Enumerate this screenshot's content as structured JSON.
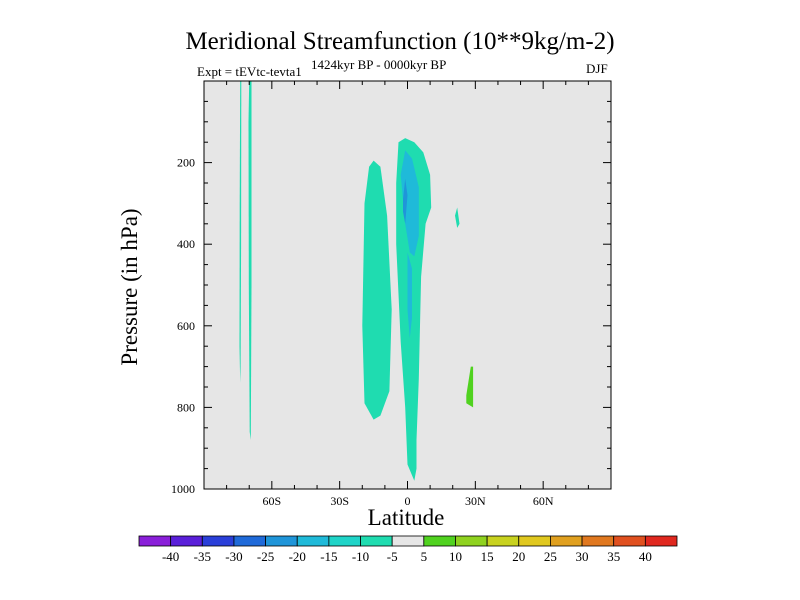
{
  "chart_data": {
    "type": "contour",
    "title": "Meridional Streamfunction (10**9kg/m-2)",
    "left_annotation": "Expt = tEVtc-tevta1",
    "center_annotation": "1424kyr BP - 0000kyr BP",
    "right_annotation": "DJF",
    "xlabel": "Latitude",
    "ylabel": "Pressure (in hPa)",
    "xlim": [
      -90,
      90
    ],
    "ylim": [
      1000,
      0
    ],
    "x_ticks": [
      {
        "value": -60,
        "label": "60S"
      },
      {
        "value": -30,
        "label": "30S"
      },
      {
        "value": 0,
        "label": "0"
      },
      {
        "value": 30,
        "label": "30N"
      },
      {
        "value": 60,
        "label": "60N"
      }
    ],
    "y_ticks": [
      {
        "value": 200,
        "label": "200"
      },
      {
        "value": 400,
        "label": "400"
      },
      {
        "value": 600,
        "label": "600"
      },
      {
        "value": 800,
        "label": "800"
      },
      {
        "value": 1000,
        "label": "1000"
      }
    ],
    "background_color": "#e6e6e6",
    "colorbar": {
      "levels": [
        "-40",
        "-35",
        "-30",
        "-25",
        "-20",
        "-15",
        "-10",
        "-5",
        "5",
        "10",
        "15",
        "20",
        "25",
        "30",
        "35",
        "40"
      ],
      "colors": [
        "#8a1fd9",
        "#5a1fd9",
        "#2a3fd9",
        "#1f6ad9",
        "#1f95d9",
        "#1fbad9",
        "#1fd4c8",
        "#1fdcb0",
        "#e6e6e6",
        "#50d21f",
        "#8fd21f",
        "#c8d21f",
        "#e0c81f",
        "#e0a01f",
        "#e0781f",
        "#e0501f",
        "#e0281f"
      ]
    },
    "regions": [
      {
        "name": "sh-polar-thin-column",
        "color": "#1fdcb0",
        "points": [
          [
            -74,
            0
          ],
          [
            -73.5,
            0
          ],
          [
            -73.6,
            400
          ],
          [
            -73.8,
            700
          ],
          [
            -74,
            740
          ],
          [
            -74.3,
            650
          ],
          [
            -74.2,
            300
          ]
        ]
      },
      {
        "name": "sh-polar-column",
        "color": "#1fdcb0",
        "points": [
          [
            -70,
            0
          ],
          [
            -69,
            0
          ],
          [
            -69,
            500
          ],
          [
            -69.3,
            880
          ],
          [
            -69.8,
            860
          ],
          [
            -70.2,
            500
          ],
          [
            -70.3,
            100
          ]
        ]
      },
      {
        "name": "tropical-west-cell",
        "color": "#1fdcb0",
        "points": [
          [
            -17,
            210
          ],
          [
            -15,
            195
          ],
          [
            -12,
            210
          ],
          [
            -9,
            330
          ],
          [
            -7,
            560
          ],
          [
            -8,
            760
          ],
          [
            -12,
            820
          ],
          [
            -15,
            830
          ],
          [
            -19,
            790
          ],
          [
            -20,
            600
          ],
          [
            -19,
            300
          ]
        ]
      },
      {
        "name": "tropical-main-cell",
        "color": "#1fdcb0",
        "points": [
          [
            -4,
            150
          ],
          [
            -1,
            140
          ],
          [
            3,
            150
          ],
          [
            7,
            175
          ],
          [
            10,
            230
          ],
          [
            10.5,
            310
          ],
          [
            8,
            350
          ],
          [
            6,
            480
          ],
          [
            5,
            730
          ],
          [
            4,
            880
          ],
          [
            4,
            950
          ],
          [
            3,
            980
          ],
          [
            0,
            940
          ],
          [
            -1,
            800
          ],
          [
            -3,
            640
          ],
          [
            -5,
            400
          ],
          [
            -5,
            250
          ]
        ]
      },
      {
        "name": "tropical-core-1",
        "color": "#1fbad9",
        "points": [
          [
            -3,
            230
          ],
          [
            -1,
            170
          ],
          [
            2,
            190
          ],
          [
            5,
            260
          ],
          [
            5,
            380
          ],
          [
            3,
            430
          ],
          [
            1,
            420
          ],
          [
            -1,
            350
          ]
        ]
      },
      {
        "name": "tropical-core-2",
        "color": "#1fbad9",
        "points": [
          [
            0,
            420
          ],
          [
            2,
            460
          ],
          [
            2,
            580
          ],
          [
            1,
            630
          ],
          [
            0,
            560
          ]
        ]
      },
      {
        "name": "tropical-core-3",
        "color": "#1f95d9",
        "points": [
          [
            -2,
            290
          ],
          [
            -1,
            240
          ],
          [
            0,
            280
          ],
          [
            -1,
            350
          ],
          [
            -2,
            320
          ]
        ]
      },
      {
        "name": "nh-small-patch",
        "color": "#1fdcb0",
        "points": [
          [
            21,
            330
          ],
          [
            22,
            310
          ],
          [
            23,
            350
          ],
          [
            22,
            360
          ]
        ]
      },
      {
        "name": "nh-positive-patch",
        "color": "#50d21f",
        "points": [
          [
            26,
            770
          ],
          [
            28,
            700
          ],
          [
            29,
            700
          ],
          [
            29,
            800
          ],
          [
            26,
            790
          ]
        ]
      }
    ]
  }
}
